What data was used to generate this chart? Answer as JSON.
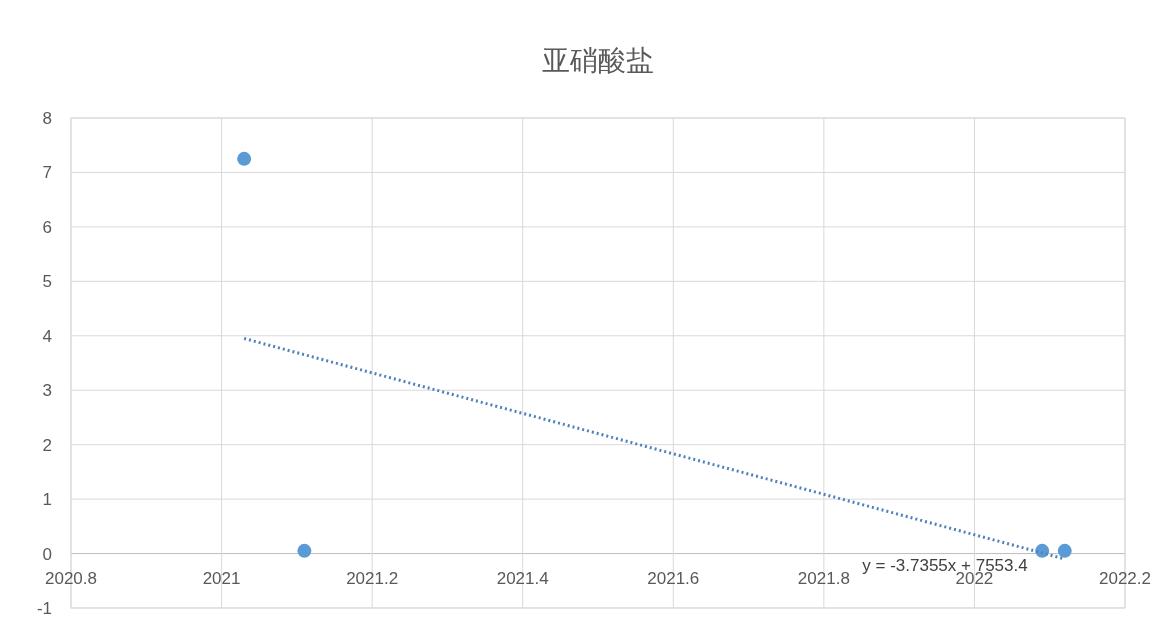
{
  "chart_data": {
    "type": "scatter",
    "title": "亚硝酸盐",
    "xlim": [
      2020.8,
      2022.2
    ],
    "xticks": [
      2020.8,
      2021,
      2021.2,
      2021.4,
      2021.6,
      2021.8,
      2022,
      2022.2
    ],
    "ylim": [
      -1,
      8
    ],
    "yticks": [
      -1,
      0,
      1,
      2,
      3,
      4,
      5,
      6,
      7,
      8
    ],
    "grid": true,
    "series": [
      {
        "marker": "circle",
        "color": "#5b9bd5",
        "x": [
          2021.03,
          2021.11,
          2022.09,
          2022.12
        ],
        "values": [
          7.25,
          0.05,
          0.05,
          0.05
        ]
      },
      {
        "type": "line",
        "marker": "none",
        "line_style": "dotted",
        "color": "#4f81bd",
        "x": [
          2021.03,
          2022.12
        ],
        "values": [
          3.95,
          -0.1
        ]
      }
    ],
    "annotations": [
      "y = -3.7355x + 7553.4"
    ]
  }
}
